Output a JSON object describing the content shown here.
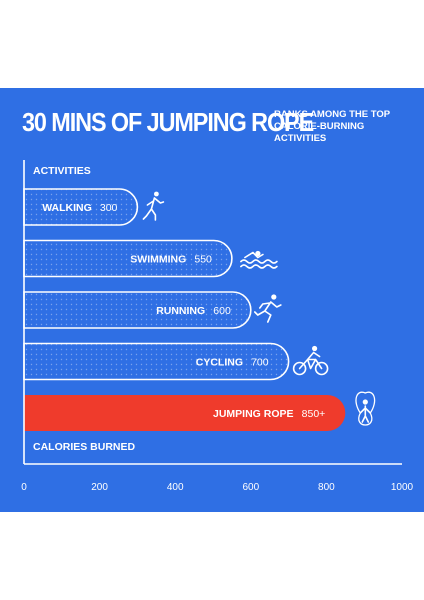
{
  "headline": "30 MINS OF JUMPING ROPE",
  "subhead": [
    "RANKS AMONG THE TOP",
    "CALORIE-BURNING",
    "ACTIVITIES"
  ],
  "colors": {
    "background": "#2f6fe4",
    "bar_outline": "#ffffff",
    "highlight_bar": "#ef3b2c",
    "text": "#ffffff"
  },
  "chart_data": {
    "type": "bar",
    "orientation": "horizontal",
    "ylabel": "ACTIVITIES",
    "xlabel": "CALORIES BURNED",
    "xlim": [
      0,
      1000
    ],
    "x_ticks": [
      0,
      200,
      400,
      600,
      800,
      1000
    ],
    "grid": false,
    "bars": [
      {
        "category": "WALKING",
        "value": 300,
        "value_label": "300",
        "icon": "walking-person-icon",
        "highlight": false
      },
      {
        "category": "SWIMMING",
        "value": 550,
        "value_label": "550",
        "icon": "swimmer-icon",
        "highlight": false
      },
      {
        "category": "RUNNING",
        "value": 600,
        "value_label": "600",
        "icon": "runner-icon",
        "highlight": false
      },
      {
        "category": "CYCLING",
        "value": 700,
        "value_label": "700",
        "icon": "cyclist-icon",
        "highlight": false
      },
      {
        "category": "JUMPING ROPE",
        "value": 850,
        "value_label": "850+",
        "icon": "jump-rope-icon",
        "highlight": true
      }
    ]
  }
}
